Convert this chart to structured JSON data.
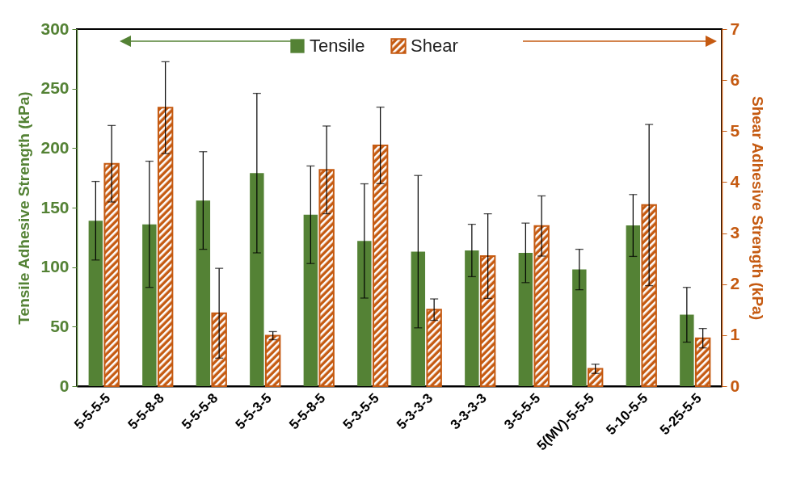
{
  "chart_data": {
    "type": "bar",
    "xlabel": null,
    "ylabel": "Tensile Adhesive Strength (kPa)",
    "y2label": "Shear Adhesive Strength (kPa)",
    "categories": [
      "5-5-5-5",
      "5-5-8-8",
      "5-5-5-8",
      "5-5-3-5",
      "5-5-8-5",
      "5-3-5-5",
      "5-3-3-3",
      "3-3-3-3",
      "3-5-5-5",
      "5(MV)-5-5-5",
      "5-10-5-5",
      "5-25-5-5"
    ],
    "series": [
      {
        "name": "Tensile",
        "color": "#548235",
        "values": [
          139,
          136,
          156,
          179,
          144,
          122,
          113,
          114,
          112,
          98,
          135,
          60
        ],
        "errors": [
          33,
          53,
          41,
          67,
          41,
          48,
          64,
          22,
          25,
          17,
          26,
          23
        ]
      },
      {
        "name": "Shear",
        "color": "#c55a11",
        "axis": "y2",
        "values": [
          4.36,
          5.46,
          1.43,
          0.99,
          4.24,
          4.72,
          1.5,
          2.55,
          3.14,
          0.34,
          3.55,
          0.94
        ],
        "errors": [
          0.75,
          0.9,
          0.88,
          0.08,
          0.86,
          0.75,
          0.21,
          0.83,
          0.59,
          0.09,
          1.58,
          0.19
        ]
      }
    ],
    "ylim": [
      0,
      300
    ],
    "yticks": [
      0,
      50,
      100,
      150,
      200,
      250,
      300
    ],
    "y2lim": [
      0,
      7
    ],
    "y2ticks": [
      0,
      1,
      2,
      3,
      4,
      5,
      6,
      7
    ],
    "grid": false,
    "legend": "top"
  }
}
